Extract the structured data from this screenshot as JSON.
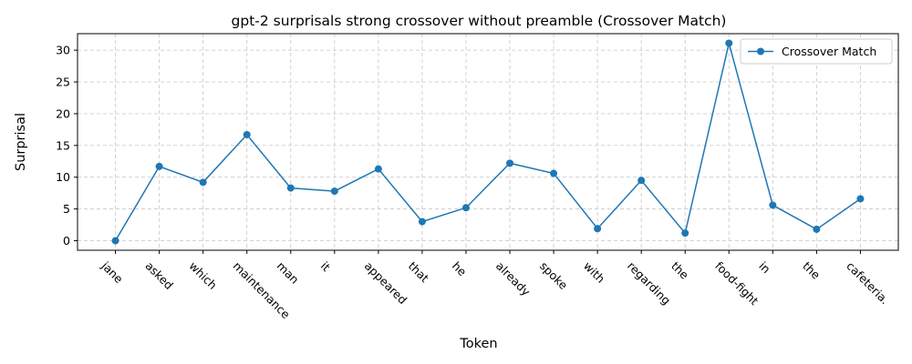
{
  "chart_data": {
    "type": "line",
    "title": "gpt-2 surprisals strong crossover without preamble (Crossover Match)",
    "xlabel": "Token",
    "ylabel": "Surprisal",
    "categories": [
      "jane",
      "asked",
      "which",
      "maintenance",
      "man",
      "it",
      "appeared",
      "that",
      "he",
      "already",
      "spoke",
      "with",
      "regarding",
      "the",
      "food-fight",
      "in",
      "the",
      "cafeteria."
    ],
    "series": [
      {
        "name": "Crossover Match",
        "color": "#1f77b4",
        "marker": "circle",
        "values": [
          0.0,
          11.7,
          9.2,
          16.7,
          8.3,
          7.8,
          11.3,
          3.0,
          5.2,
          12.2,
          10.6,
          1.9,
          9.5,
          1.2,
          31.1,
          5.6,
          1.8,
          6.6
        ]
      }
    ],
    "ylim": [
      -1.5,
      32.6
    ],
    "yticks": [
      0,
      5,
      10,
      15,
      20,
      25,
      30
    ],
    "grid": true,
    "legend_position": "top-right"
  }
}
